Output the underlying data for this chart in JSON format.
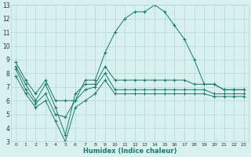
{
  "xlabel": "Humidex (Indice chaleur)",
  "x": [
    0,
    1,
    2,
    3,
    4,
    5,
    6,
    7,
    8,
    9,
    10,
    11,
    12,
    13,
    14,
    15,
    16,
    17,
    18,
    19,
    20,
    21,
    22,
    23
  ],
  "series1": [
    8.8,
    7.5,
    6.5,
    7.5,
    6.0,
    6.0,
    6.0,
    7.5,
    7.5,
    9.5,
    11.0,
    12.0,
    12.5,
    12.5,
    13.0,
    12.5,
    11.5,
    10.5,
    9.0,
    7.2,
    7.2,
    6.8,
    6.8,
    6.8
  ],
  "series2": [
    8.5,
    7.2,
    6.0,
    7.2,
    5.5,
    3.5,
    6.5,
    7.2,
    7.2,
    8.5,
    7.5,
    7.5,
    7.5,
    7.5,
    7.5,
    7.5,
    7.5,
    7.5,
    7.2,
    7.2,
    7.2,
    6.8,
    6.8,
    6.8
  ],
  "series3": [
    8.3,
    6.8,
    5.8,
    6.5,
    5.0,
    4.8,
    6.0,
    6.8,
    7.0,
    8.0,
    6.8,
    6.8,
    6.8,
    6.8,
    6.8,
    6.8,
    6.8,
    6.8,
    6.8,
    6.8,
    6.5,
    6.5,
    6.5,
    6.5
  ],
  "series4": [
    7.8,
    6.5,
    5.5,
    6.0,
    4.5,
    3.0,
    5.5,
    6.0,
    6.5,
    7.5,
    6.5,
    6.5,
    6.5,
    6.5,
    6.5,
    6.5,
    6.5,
    6.5,
    6.5,
    6.5,
    6.3,
    6.3,
    6.3,
    6.3
  ],
  "line_color": "#1a7a6e",
  "bg_color": "#d8f0ee",
  "grid_color": "#b0d8d4",
  "ylim": [
    3,
    13
  ],
  "xlim": [
    -0.5,
    23.5
  ]
}
